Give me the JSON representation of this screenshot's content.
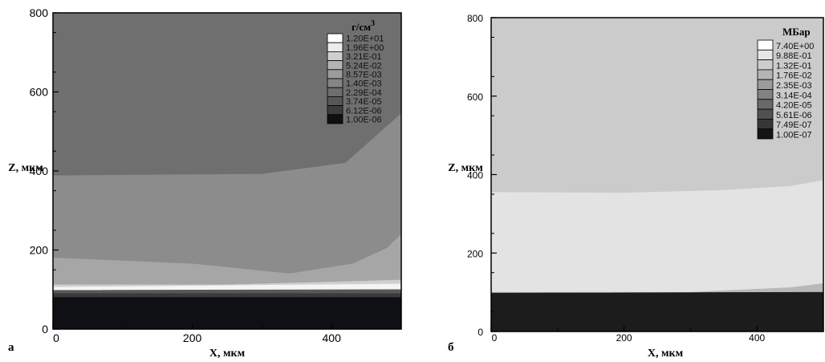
{
  "chart_data": [
    {
      "type": "heatmap",
      "panel_label": "а",
      "xlabel": "X, мкм",
      "ylabel": "Z, мкм",
      "xlim": [
        0,
        500
      ],
      "ylim": [
        0,
        800
      ],
      "x_ticks": [
        "0",
        "200",
        "400"
      ],
      "y_ticks": [
        "0",
        "200",
        "400",
        "600",
        "800"
      ],
      "x_tick_values": [
        0,
        200,
        400
      ],
      "y_tick_values": [
        0,
        200,
        400,
        600,
        800
      ],
      "legend": {
        "title": "г/см",
        "title_superscript": "3",
        "placement": "top-right",
        "levels": [
          {
            "label": "1.20E+01",
            "color": "#ffffff"
          },
          {
            "label": "1.96E+00",
            "color": "#ebebeb"
          },
          {
            "label": "3.21E-01",
            "color": "#cfcfcf"
          },
          {
            "label": "5.24E-02",
            "color": "#b4b4b4"
          },
          {
            "label": "8.57E-03",
            "color": "#9c9c9c"
          },
          {
            "label": "1.40E-03",
            "color": "#858585"
          },
          {
            "label": "2.29E-04",
            "color": "#6e6e6e"
          },
          {
            "label": "3.74E-05",
            "color": "#575757"
          },
          {
            "label": "6.12E-06",
            "color": "#3c3c3c"
          },
          {
            "label": "1.00E-06",
            "color": "#0f0f14"
          }
        ]
      },
      "regions": [
        {
          "color": "#6f6f6f",
          "top": [
            [
              0,
              800
            ],
            [
              500,
              800
            ]
          ],
          "bottom": [
            [
              0,
              388
            ],
            [
              300,
              392
            ],
            [
              420,
              420
            ],
            [
              500,
              545
            ]
          ]
        },
        {
          "color": "#8c8c8c",
          "top": [
            [
              0,
              388
            ],
            [
              300,
              392
            ],
            [
              420,
              420
            ],
            [
              500,
              545
            ]
          ],
          "bottom": [
            [
              0,
              180
            ],
            [
              200,
              165
            ],
            [
              340,
              140
            ],
            [
              430,
              165
            ],
            [
              480,
              205
            ],
            [
              500,
              240
            ]
          ]
        },
        {
          "color": "#a6a6a6",
          "top": [
            [
              0,
              180
            ],
            [
              200,
              165
            ],
            [
              340,
              140
            ],
            [
              430,
              165
            ],
            [
              480,
              205
            ],
            [
              500,
              240
            ]
          ],
          "bottom": [
            [
              0,
              112
            ],
            [
              250,
              112
            ],
            [
              500,
              124
            ]
          ]
        },
        {
          "color": "#cfcfcf",
          "top": [
            [
              0,
              112
            ],
            [
              250,
              112
            ],
            [
              500,
              124
            ]
          ],
          "bottom": [
            [
              0,
              106
            ],
            [
              500,
              114
            ]
          ]
        },
        {
          "color": "#f4f4f4",
          "top": [
            [
              0,
              106
            ],
            [
              500,
              114
            ]
          ],
          "bottom": [
            [
              0,
              98
            ],
            [
              500,
              100
            ]
          ]
        },
        {
          "color": "#585858",
          "top": [
            [
              0,
              98
            ],
            [
              500,
              100
            ]
          ],
          "bottom": [
            [
              0,
              90
            ],
            [
              500,
              90
            ]
          ]
        },
        {
          "color": "#3a3a3a",
          "top": [
            [
              0,
              90
            ],
            [
              500,
              90
            ]
          ],
          "bottom": [
            [
              0,
              80
            ],
            [
              500,
              80
            ]
          ]
        },
        {
          "color": "#0f1014",
          "top": [
            [
              0,
              80
            ],
            [
              500,
              80
            ]
          ],
          "bottom": [
            [
              0,
              0
            ],
            [
              500,
              0
            ]
          ]
        }
      ]
    },
    {
      "type": "heatmap",
      "panel_label": "б",
      "xlabel": "X, мкм",
      "ylabel": "Z, мкм",
      "xlim": [
        0,
        500
      ],
      "ylim": [
        0,
        800
      ],
      "x_ticks": [
        "0",
        "200",
        "400"
      ],
      "y_ticks": [
        "0",
        "200",
        "400",
        "600",
        "800"
      ],
      "x_tick_values": [
        0,
        200,
        400
      ],
      "y_tick_values": [
        0,
        200,
        400,
        600,
        800
      ],
      "legend": {
        "title": "МБар",
        "title_superscript": "",
        "placement": "top-right",
        "levels": [
          {
            "label": "7.40E+00",
            "color": "#ffffff"
          },
          {
            "label": "9.88E-01",
            "color": "#e6e6e6"
          },
          {
            "label": "1.32E-01",
            "color": "#cdcdcd"
          },
          {
            "label": "1.76E-02",
            "color": "#b4b4b4"
          },
          {
            "label": "2.35E-03",
            "color": "#9b9b9b"
          },
          {
            "label": "3.14E-04",
            "color": "#828282"
          },
          {
            "label": "4.20E-05",
            "color": "#696969"
          },
          {
            "label": "5.61E-06",
            "color": "#505050"
          },
          {
            "label": "7.49E-07",
            "color": "#373737"
          },
          {
            "label": "1.00E-07",
            "color": "#141414"
          }
        ]
      },
      "regions": [
        {
          "color": "#cbcbcb",
          "top": [
            [
              0,
              800
            ],
            [
              500,
              800
            ]
          ],
          "bottom": [
            [
              0,
              355
            ],
            [
              200,
              353
            ],
            [
              350,
              360
            ],
            [
              450,
              370
            ],
            [
              500,
              385
            ]
          ]
        },
        {
          "color": "#e3e3e3",
          "top": [
            [
              0,
              355
            ],
            [
              200,
              353
            ],
            [
              350,
              360
            ],
            [
              450,
              370
            ],
            [
              500,
              385
            ]
          ],
          "bottom": [
            [
              0,
              100
            ],
            [
              300,
              100
            ],
            [
              450,
              112
            ],
            [
              500,
              122
            ]
          ]
        },
        {
          "color": "#b8b8b8",
          "top": [
            [
              0,
              100
            ],
            [
              300,
              100
            ],
            [
              450,
              112
            ],
            [
              500,
              122
            ]
          ],
          "bottom": [
            [
              0,
              98
            ],
            [
              500,
              100
            ]
          ]
        },
        {
          "color": "#1c1c1c",
          "top": [
            [
              0,
              98
            ],
            [
              500,
              100
            ]
          ],
          "bottom": [
            [
              0,
              0
            ],
            [
              500,
              0
            ]
          ]
        }
      ]
    }
  ]
}
